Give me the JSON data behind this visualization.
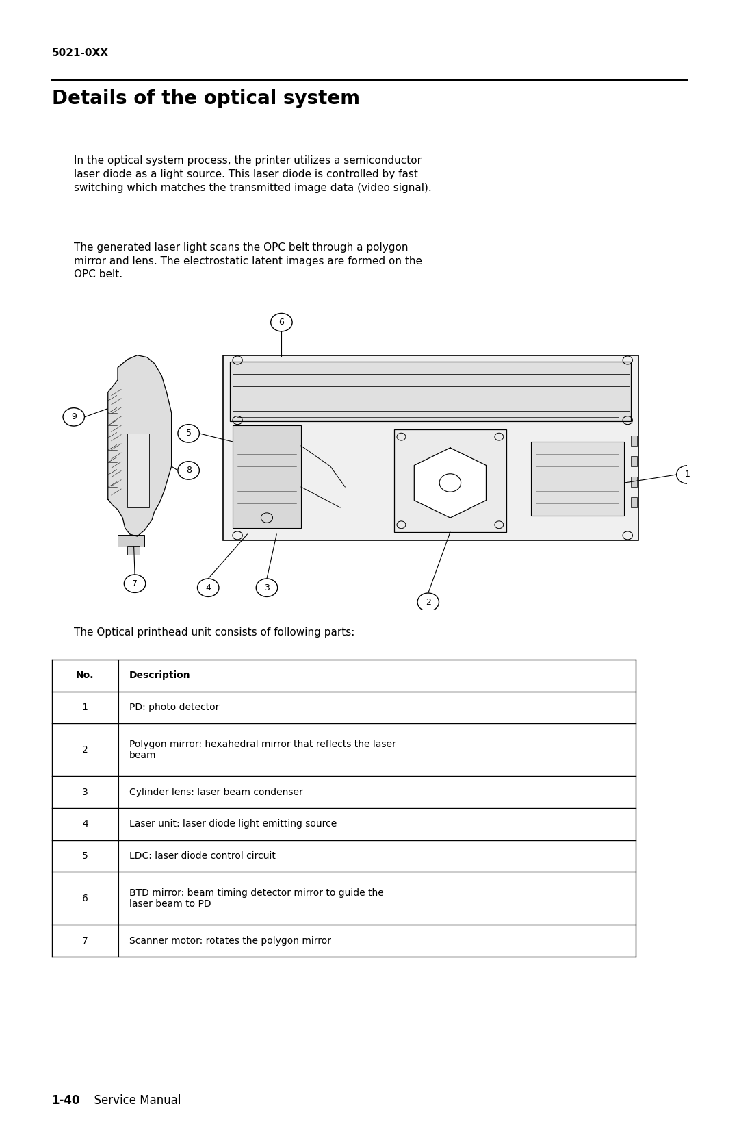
{
  "page_width": 10.8,
  "page_height": 16.69,
  "background_color": "#ffffff",
  "header_text": "5021-0XX",
  "header_fontsize": 11,
  "title_text": "Details of the optical system",
  "title_fontsize": 20,
  "para1": "In the optical system process, the printer utilizes a semiconductor\nlaser diode as a light source. This laser diode is controlled by fast\nswitching which matches the transmitted image data (video signal).",
  "para2": "The generated laser light scans the OPC belt through a polygon\nmirror and lens. The electrostatic latent images are formed on the\nOPC belt.",
  "table_intro": "The Optical printhead unit consists of following parts:",
  "table_data": [
    [
      "No.",
      "Description"
    ],
    [
      "1",
      "PD: photo detector"
    ],
    [
      "2",
      "Polygon mirror: hexahedral mirror that reflects the laser\nbeam"
    ],
    [
      "3",
      "Cylinder lens: laser beam condenser"
    ],
    [
      "4",
      "Laser unit: laser diode light emitting source"
    ],
    [
      "5",
      "LDC: laser diode control circuit"
    ],
    [
      "6",
      "BTD mirror: beam timing detector mirror to guide the\nlaser beam to PD"
    ],
    [
      "7",
      "Scanner motor: rotates the polygon mirror"
    ]
  ],
  "footer_bold": "1-40",
  "footer_text": "  Service Manual",
  "footer_fontsize": 12,
  "body_fontsize": 11
}
